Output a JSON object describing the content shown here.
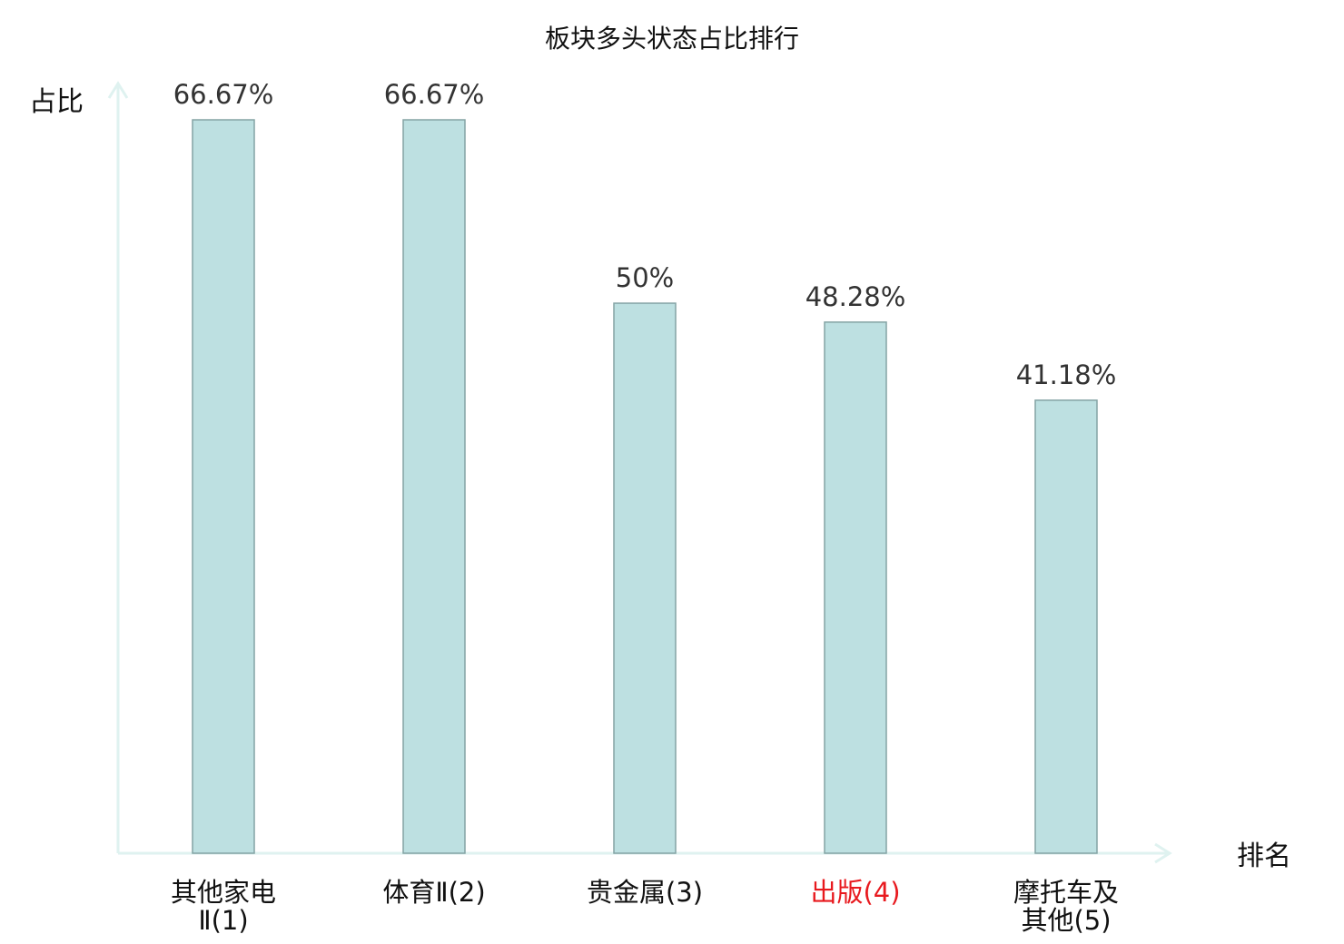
{
  "chart_data": {
    "type": "bar",
    "title": "板块多头状态占比排行",
    "ylabel": "占比",
    "xlabel": "排名",
    "ylim": [
      0,
      80
    ],
    "grid": false,
    "categories": [
      [
        "其他家电",
        "Ⅱ(1)"
      ],
      [
        "体育Ⅱ(2)"
      ],
      [
        "贵金属(3)"
      ],
      [
        "出版(4)"
      ],
      [
        "摩托车及",
        "其他(5)"
      ]
    ],
    "values": [
      66.67,
      66.67,
      50,
      48.28,
      41.18
    ],
    "value_labels": [
      "66.67%",
      "66.67%",
      "50%",
      "48.28%",
      "41.18%"
    ],
    "highlight_index": 3,
    "colors": {
      "bar_fill": "#bde0e1",
      "bar_stroke": "#84a3a4",
      "axis": "#dff2f0",
      "highlight_label": "#e8191e",
      "label": "#111111",
      "value_label": "#333333"
    }
  }
}
